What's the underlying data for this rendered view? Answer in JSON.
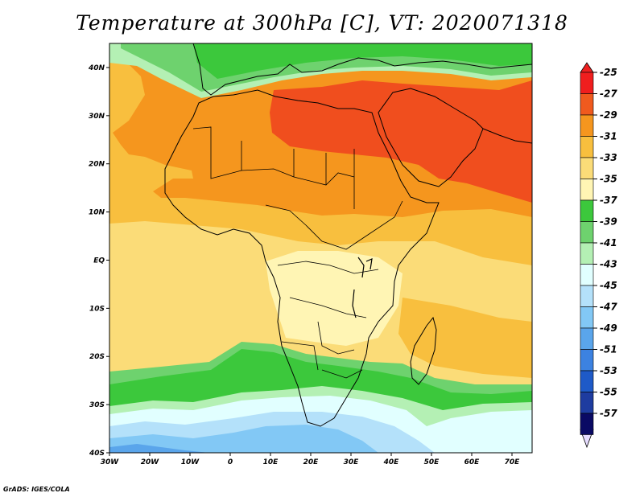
{
  "title": "Temperature at 300hPa [C], VT: 2020071318",
  "footer": "GrADS: IGES/COLA",
  "map": {
    "lon_range": [
      -30,
      75
    ],
    "lat_range": [
      -40,
      45
    ],
    "lon_ticks": [
      {
        "value": -30,
        "label": "30W"
      },
      {
        "value": -20,
        "label": "20W"
      },
      {
        "value": -10,
        "label": "10W"
      },
      {
        "value": 0,
        "label": "0"
      },
      {
        "value": 10,
        "label": "10E"
      },
      {
        "value": 20,
        "label": "20E"
      },
      {
        "value": 30,
        "label": "30E"
      },
      {
        "value": 40,
        "label": "40E"
      },
      {
        "value": 50,
        "label": "50E"
      },
      {
        "value": 60,
        "label": "60E"
      },
      {
        "value": 70,
        "label": "70E"
      }
    ],
    "lat_ticks": [
      {
        "value": 40,
        "label": "40N"
      },
      {
        "value": 30,
        "label": "30N"
      },
      {
        "value": 20,
        "label": "20N"
      },
      {
        "value": 10,
        "label": "10N"
      },
      {
        "value": 0,
        "label": "EQ"
      },
      {
        "value": -10,
        "label": "10S"
      },
      {
        "value": -20,
        "label": "20S"
      },
      {
        "value": -30,
        "label": "30S"
      },
      {
        "value": -40,
        "label": "40S"
      }
    ]
  },
  "colorbar": {
    "levels": [
      {
        "label": "-25",
        "color": "#f01e1e"
      },
      {
        "label": "-27",
        "color": "#f05a1e"
      },
      {
        "label": "-29",
        "color": "#f5961e"
      },
      {
        "label": "-31",
        "color": "#f8bf3e"
      },
      {
        "label": "-33",
        "color": "#fbdc78"
      },
      {
        "label": "-35",
        "color": "#fff5b4"
      },
      {
        "label": "-37",
        "color": "#3cc83c"
      },
      {
        "label": "-39",
        "color": "#6ed26e"
      },
      {
        "label": "-41",
        "color": "#b4f0b4"
      },
      {
        "label": "-43",
        "color": "#e1ffff"
      },
      {
        "label": "-45",
        "color": "#b4e1fa"
      },
      {
        "label": "-47",
        "color": "#82c8f5"
      },
      {
        "label": "-49",
        "color": "#5aa5eb"
      },
      {
        "label": "-51",
        "color": "#3c82e1"
      },
      {
        "label": "-53",
        "color": "#1e5ac8"
      },
      {
        "label": "-55",
        "color": "#1e3ca0"
      },
      {
        "label": "-57",
        "color": "#0a0a64"
      }
    ],
    "top_arrow_color": "#ee2020",
    "bottom_arrow_color": "#e6dcff"
  },
  "field_colors": {
    "hot_core": "#f04e1e",
    "orange": "#f5961e",
    "orange_light": "#f8bf3e",
    "yellow": "#fbdc78",
    "pale": "#fff5b4",
    "green_dark": "#3cc83c",
    "green": "#6ed26e",
    "green_light": "#b4f0b4",
    "cyan_pale": "#e1ffff",
    "blue_light": "#b4e1fa",
    "blue": "#82c8f5",
    "blue_mid": "#5aa5eb"
  }
}
